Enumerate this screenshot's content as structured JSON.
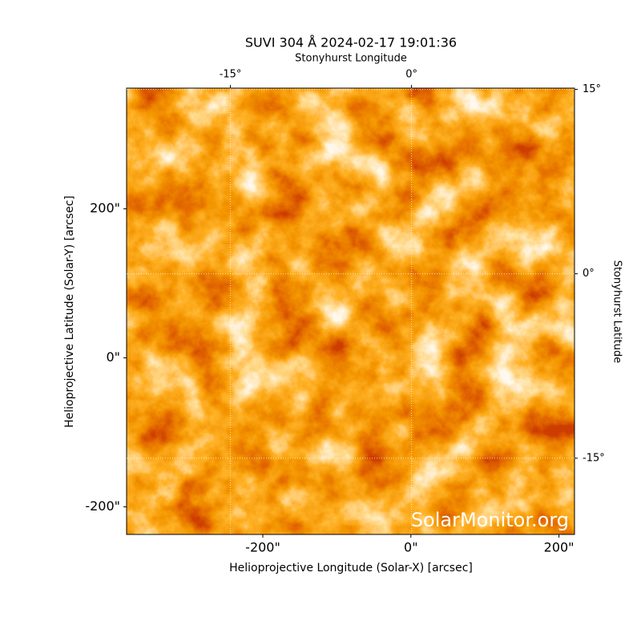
{
  "chart_data": {
    "type": "image",
    "title": "SUVI 304 Å 2024-02-17 19:01:36",
    "xlabel": "Helioprojective Longitude (Solar-X) [arcsec]",
    "ylabel": "Helioprojective Latitude (Solar-Y) [arcsec]",
    "x2label": "Stonyhurst Longitude",
    "y2label": "Stonyhurst Latitude",
    "xlim": [
      -384,
      221
    ],
    "ylim": [
      -237,
      362
    ],
    "xticks": [
      {
        "value": -200,
        "label": "-200\""
      },
      {
        "value": 0,
        "label": "0\""
      },
      {
        "value": 200,
        "label": "200\""
      }
    ],
    "yticks": [
      {
        "value": -200,
        "label": "-200\""
      },
      {
        "value": 0,
        "label": "0\""
      },
      {
        "value": 200,
        "label": "200\""
      }
    ],
    "x2lim": [
      -23.6,
      13.5
    ],
    "x2ticks": [
      {
        "value": -15,
        "label": "-15°"
      },
      {
        "value": 0,
        "label": "0°"
      }
    ],
    "y2lim": [
      -21.2,
      15.1
    ],
    "y2ticks": [
      {
        "value": 15,
        "label": "15°"
      },
      {
        "value": 0,
        "label": "0°"
      },
      {
        "value": -15,
        "label": "-15°"
      }
    ],
    "watermark": "SolarMonitor.org"
  }
}
